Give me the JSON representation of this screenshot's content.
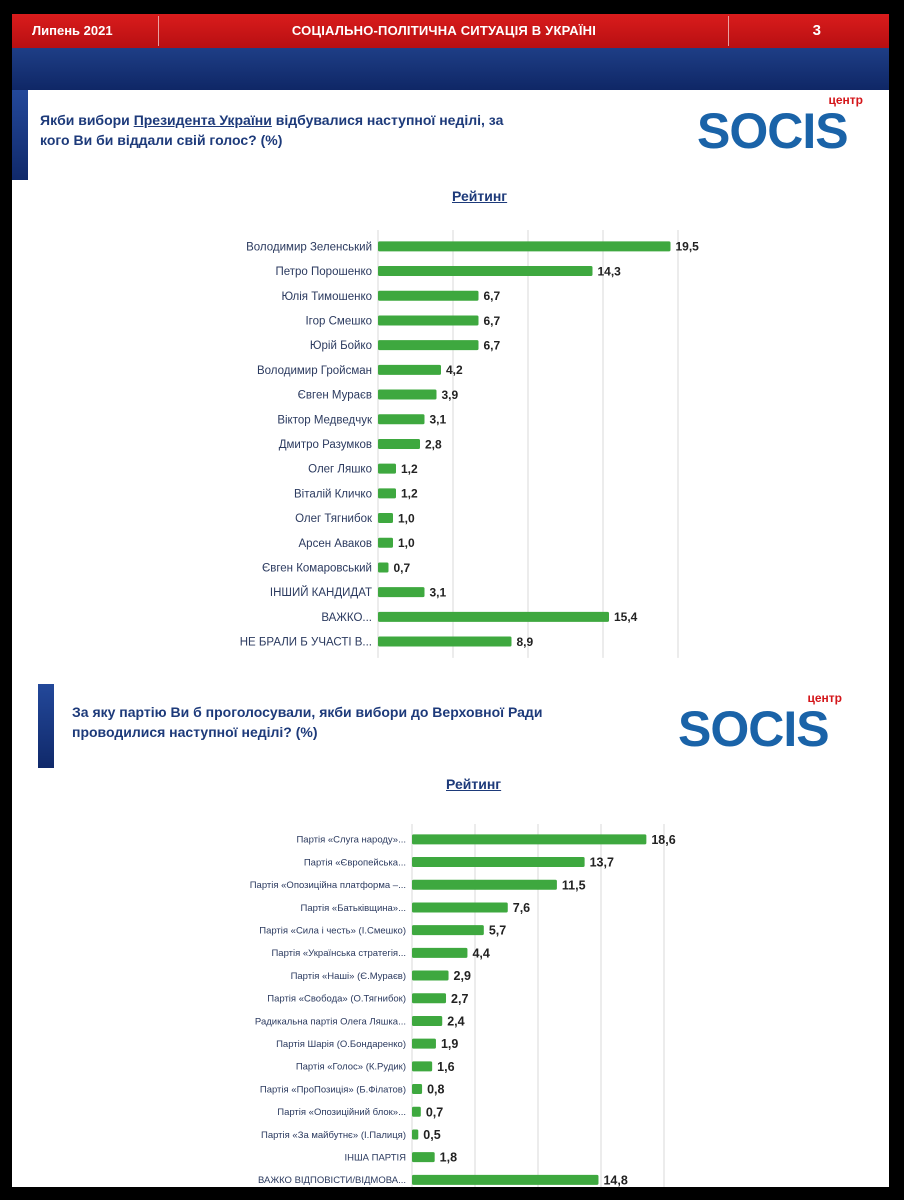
{
  "header": {
    "date": "Липень 2021",
    "title": "СОЦІАЛЬНО-ПОЛІТИЧНА СИТУАЦІЯ В УКРАЇНІ",
    "page_number": "3"
  },
  "logo": {
    "small": "центр",
    "brand": "SOCIS"
  },
  "section1": {
    "question_prefix": "Якби вибори ",
    "question_link": "Президента України",
    "question_line1_suffix": " відбувалися наступної неділі, за",
    "question_line2": "кого Ви би віддали свій голос? (%)",
    "rating_label": "Рейтинг"
  },
  "section2": {
    "question_line1": "За яку партію Ви б проголосували, якби вибори до Верховної Ради",
    "question_line2": "проводилися наступної неділі? (%)",
    "rating_label": "Рейтинг"
  },
  "colors": {
    "bar": "#3ea83f",
    "grid": "#d9d9d9",
    "red": "#c8161a",
    "blue": "#1d3a7a"
  },
  "chart_data": [
    {
      "type": "bar",
      "orientation": "horizontal",
      "title": "Рейтинг",
      "categories": [
        "Володимир Зеленський",
        "Петро Порошенко",
        "Юлія Тимошенко",
        "Ігор Смешко",
        "Юрій Бойко",
        "Володимир Гройсман",
        "Євген Мураєв",
        "Віктор Медведчук",
        "Дмитро Разумков",
        "Олег Ляшко",
        "Віталій Кличко",
        "Олег Тягнибок",
        "Арсен Аваков",
        "Євген Комаровський",
        "ІНШИЙ КАНДИДАТ",
        "ВАЖКО...",
        "НЕ БРАЛИ Б УЧАСТІ В..."
      ],
      "values": [
        19.5,
        14.3,
        6.7,
        6.7,
        6.7,
        4.2,
        3.9,
        3.1,
        2.8,
        1.2,
        1.2,
        1.0,
        1.0,
        0.7,
        3.1,
        15.4,
        8.9
      ],
      "value_labels": [
        "19,5",
        "14,3",
        "6,7",
        "6,7",
        "6,7",
        "4,2",
        "3,9",
        "3,1",
        "2,8",
        "1,2",
        "1,2",
        "1,0",
        "1,0",
        "0,7",
        "3,1",
        "15,4",
        "8,9"
      ],
      "xlim": [
        0,
        20
      ],
      "grid": true
    },
    {
      "type": "bar",
      "orientation": "horizontal",
      "title": "Рейтинг",
      "categories": [
        "Партія «Слуга народу»...",
        "Партія «Європейська...",
        "Партія «Опозиційна платформа –...",
        "Партія «Батьківщина»...",
        "Партія «Сила і честь» (І.Смешко)",
        "Партія «Українська стратегія...",
        "Партія «Наші» (Є.Мураєв)",
        "Партія «Свобода» (О.Тягнибок)",
        "Радикальна партія Олега Ляшка...",
        "Партія Шарія (О.Бондаренко)",
        "Партія «Голос» (К.Рудик)",
        "Партія «ПроПозиція» (Б.Філатов)",
        "Партія «Опозиційний блок»...",
        "Партія «За майбутнє» (І.Палиця)",
        "ІНША ПАРТІЯ",
        "ВАЖКО ВІДПОВІСТИ/ВІДМОВА..."
      ],
      "values": [
        18.6,
        13.7,
        11.5,
        7.6,
        5.7,
        4.4,
        2.9,
        2.7,
        2.4,
        1.9,
        1.6,
        0.8,
        0.7,
        0.5,
        1.8,
        14.8
      ],
      "value_labels": [
        "18,6",
        "13,7",
        "11,5",
        "7,6",
        "5,7",
        "4,4",
        "2,9",
        "2,7",
        "2,4",
        "1,9",
        "1,6",
        "0,8",
        "0,7",
        "0,5",
        "1,8",
        "14,8"
      ],
      "xlim": [
        0,
        20
      ],
      "grid": true
    }
  ]
}
